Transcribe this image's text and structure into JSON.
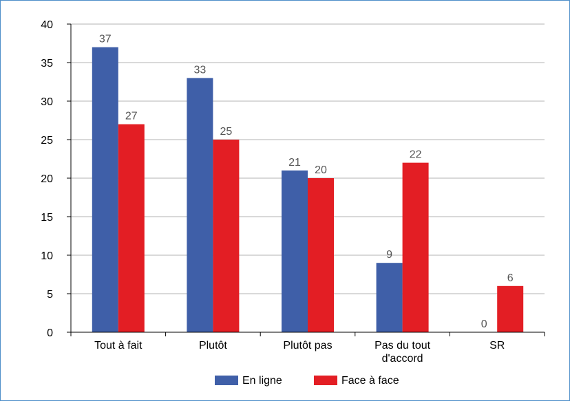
{
  "chart_data": {
    "type": "bar",
    "categories": [
      "Tout à fait",
      "Plutôt",
      "Plutôt pas",
      "Pas du tout\nd'accord",
      "SR"
    ],
    "series": [
      {
        "name": "En ligne",
        "color": "#3f5fa8",
        "values": [
          37,
          33,
          21,
          9,
          0
        ]
      },
      {
        "name": "Face à face",
        "color": "#e31e24",
        "values": [
          27,
          25,
          20,
          22,
          6
        ]
      }
    ],
    "ylim": [
      0,
      40
    ],
    "yticks": [
      0,
      5,
      10,
      15,
      20,
      25,
      30,
      35,
      40
    ],
    "grid": true,
    "legend": "bottom",
    "title": "",
    "xlabel": "",
    "ylabel": ""
  }
}
